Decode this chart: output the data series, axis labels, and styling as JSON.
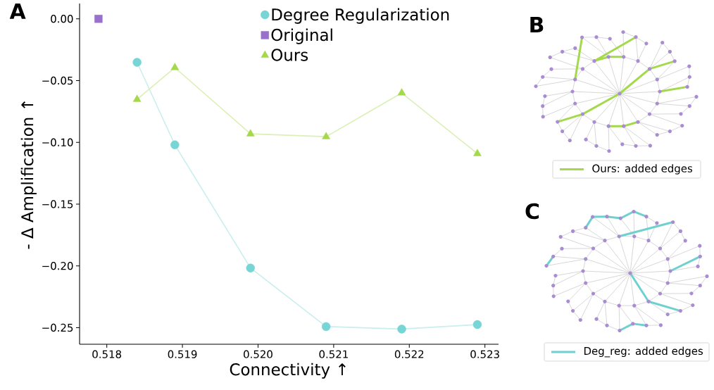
{
  "chart_data": [
    {
      "type": "line",
      "title": "A",
      "xlabel": "Connectivity ↑",
      "ylabel": "- Δ Amplification ↑",
      "xlim": [
        0.51764,
        0.52318
      ],
      "ylim": [
        -0.2634,
        0.0124
      ],
      "xticks": [
        0.518,
        0.519,
        {
          "value": 0.52,
          "label": "0.520"
        },
        0.521,
        0.522,
        0.523
      ],
      "yticks": [
        {
          "value": 0,
          "label": "0.00"
        },
        {
          "value": -0.05,
          "label": "−0.05"
        },
        {
          "value": -0.1,
          "label": "−0.10"
        },
        {
          "value": -0.15,
          "label": "−0.15"
        },
        {
          "value": -0.2,
          "label": "−0.20"
        },
        {
          "value": -0.25,
          "label": "−0.25"
        }
      ],
      "legend": "top",
      "grid": false,
      "series": [
        {
          "name": "Degree Regularization",
          "type": "line",
          "marker": "circle",
          "color": "#78d5d5",
          "x": [
            0.5184,
            0.5189,
            0.5199,
            0.5209,
            0.5219,
            0.5229
          ],
          "values": [
            -0.0352,
            -0.102,
            -0.2017,
            -0.2491,
            -0.2511,
            -0.2475
          ]
        },
        {
          "name": "Original",
          "type": "scatter",
          "marker": "square",
          "color": "#9970cc",
          "x": [
            0.51789
          ],
          "values": [
            0.0
          ]
        },
        {
          "name": "Ours",
          "type": "line",
          "marker": "triangle",
          "color": "#a3d94a",
          "x": [
            0.5184,
            0.5189,
            0.5199,
            0.5209,
            0.5219,
            0.5229
          ],
          "values": [
            -0.0652,
            -0.0395,
            -0.0931,
            -0.0954,
            -0.06,
            -0.1091
          ]
        }
      ]
    },
    {
      "type": "other",
      "title": "B",
      "color": "#a3d94a",
      "annotations": [
        "Ours: added edges"
      ]
    },
    {
      "type": "other",
      "title": "C",
      "color": "#6fd0d0",
      "annotations": [
        "Deg_reg: added edges"
      ]
    }
  ]
}
